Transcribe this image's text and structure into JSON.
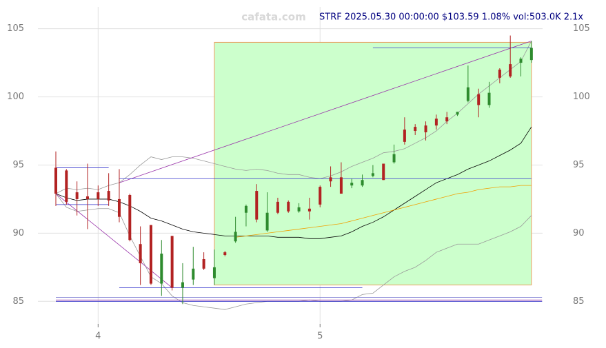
{
  "chart_data": {
    "type": "candlestick",
    "title": "STRF 2025.05.30 00:00:00 $103.59 1.08% vol:503.0K 2.1x",
    "watermark": "cafata.com",
    "categories": [
      null,
      null,
      null,
      null,
      "4",
      null,
      null,
      null,
      null,
      null,
      null,
      null,
      null,
      null,
      null,
      null,
      null,
      null,
      null,
      null,
      null,
      null,
      null,
      null,
      null,
      "5",
      null,
      null,
      null,
      null,
      null,
      null,
      null,
      null,
      null,
      null,
      null,
      null,
      null,
      null,
      null,
      null,
      null,
      null,
      null,
      null
    ],
    "open": [
      94.8,
      94.6,
      93.0,
      92.7,
      93.0,
      93.1,
      92.5,
      92.8,
      89.2,
      90.6,
      86.3,
      89.8,
      86.0,
      86.6,
      88.1,
      86.7,
      88.6,
      89.4,
      91.5,
      93.1,
      90.2,
      92.3,
      92.3,
      91.6,
      91.8,
      93.4,
      94.1,
      94.1,
      93.5,
      93.5,
      94.2,
      95.1,
      95.2,
      97.6,
      97.8,
      97.9,
      98.4,
      98.5,
      98.7,
      99.7,
      100.2,
      99.4,
      102.0,
      102.4,
      102.5,
      102.7
    ],
    "high": [
      96.0,
      94.7,
      93.8,
      95.1,
      93.5,
      94.4,
      94.7,
      92.9,
      90.5,
      90.6,
      89.5,
      89.8,
      87.8,
      89.0,
      88.6,
      88.8,
      88.7,
      91.2,
      92.1,
      93.6,
      93.0,
      92.6,
      92.4,
      92.2,
      92.6,
      93.5,
      94.9,
      95.2,
      94.0,
      94.3,
      95.0,
      95.1,
      96.5,
      98.5,
      98.0,
      98.2,
      98.7,
      98.9,
      98.9,
      102.3,
      100.6,
      101.1,
      102.1,
      104.5,
      102.9,
      104.1
    ],
    "low": [
      92.0,
      92.1,
      91.3,
      90.3,
      92.0,
      92.0,
      90.8,
      89.4,
      86.2,
      86.2,
      85.4,
      85.8,
      84.8,
      86.2,
      87.3,
      86.2,
      88.3,
      89.3,
      90.5,
      90.8,
      90.1,
      91.4,
      91.5,
      91.5,
      91.0,
      91.9,
      93.4,
      92.9,
      93.3,
      93.4,
      94.1,
      93.9,
      95.1,
      96.5,
      97.2,
      96.8,
      97.6,
      98.0,
      98.6,
      99.6,
      98.5,
      99.2,
      101.0,
      101.4,
      101.5,
      102.5
    ],
    "close": [
      92.9,
      92.3,
      92.5,
      92.5,
      92.5,
      92.4,
      91.2,
      89.5,
      87.8,
      86.3,
      88.5,
      86.0,
      86.4,
      87.4,
      87.4,
      87.5,
      88.4,
      90.1,
      92.0,
      91.0,
      91.5,
      91.5,
      91.6,
      91.9,
      91.6,
      92.1,
      93.8,
      92.9,
      93.7,
      93.9,
      94.4,
      93.9,
      95.8,
      96.7,
      97.5,
      97.4,
      97.9,
      98.2,
      98.9,
      100.7,
      99.4,
      100.3,
      101.4,
      101.5,
      102.8,
      103.59
    ],
    "up_color": "#2e8b2e",
    "down_color": "#b22222",
    "lines": [
      {
        "color": "#000000",
        "values": [
          92.9,
          92.6,
          92.4,
          92.5,
          92.5,
          92.5,
          92.3,
          92.0,
          91.6,
          91.1,
          90.9,
          90.6,
          90.3,
          90.1,
          90.0,
          89.9,
          89.8,
          89.8,
          89.8,
          89.8,
          89.8,
          89.7,
          89.7,
          89.7,
          89.6,
          89.6,
          89.7,
          89.8,
          90.1,
          90.5,
          90.8,
          91.2,
          91.7,
          92.2,
          92.7,
          93.2,
          93.7,
          94.0,
          94.3,
          94.7,
          95.0,
          95.3,
          95.7,
          96.1,
          96.6,
          97.8
        ]
      },
      {
        "color": "#f0a000",
        "values": [
          null,
          null,
          null,
          null,
          null,
          null,
          null,
          null,
          null,
          null,
          null,
          null,
          null,
          null,
          null,
          null,
          null,
          89.7,
          89.8,
          89.9,
          90.0,
          90.1,
          90.2,
          90.3,
          90.4,
          90.5,
          90.6,
          90.7,
          90.9,
          91.1,
          91.3,
          91.5,
          91.7,
          91.9,
          92.1,
          92.3,
          92.5,
          92.7,
          92.9,
          93.0,
          93.2,
          93.3,
          93.4,
          93.4,
          93.5,
          93.5
        ]
      },
      {
        "color": "#999999",
        "values": [
          92.9,
          93.3,
          93.2,
          93.3,
          93.2,
          93.5,
          93.7,
          94.3,
          95.0,
          95.6,
          95.4,
          95.6,
          95.6,
          95.5,
          95.3,
          95.1,
          94.9,
          94.7,
          94.6,
          94.7,
          94.6,
          94.4,
          94.3,
          94.3,
          94.1,
          94.0,
          94.2,
          94.5,
          94.9,
          95.2,
          95.5,
          95.9,
          96.0,
          96.2,
          96.6,
          97.0,
          97.5,
          98.2,
          98.8,
          99.5,
          100.2,
          100.8,
          101.4,
          102.0,
          102.6,
          104.1
        ]
      },
      {
        "color": "#999999",
        "values": [
          92.9,
          91.9,
          91.6,
          91.7,
          91.8,
          91.8,
          91.5,
          89.8,
          88.3,
          86.8,
          86.3,
          85.4,
          84.9,
          84.7,
          84.6,
          84.5,
          84.4,
          84.6,
          84.8,
          84.9,
          85.0,
          85.0,
          85.0,
          85.0,
          85.1,
          85.0,
          85.0,
          85.0,
          85.1,
          85.5,
          85.6,
          86.2,
          86.8,
          87.2,
          87.5,
          88.0,
          88.6,
          88.9,
          89.2,
          89.2,
          89.2,
          89.5,
          89.8,
          90.1,
          90.5,
          91.3
        ]
      }
    ],
    "box": {
      "x": [
        15,
        45
      ],
      "y": [
        86.2,
        104.0
      ],
      "fill": "#ccffcc",
      "stroke": "#e8a060"
    },
    "segments": [
      {
        "color": "#9933aa",
        "x": [
          0,
          11
        ],
        "y": [
          92.9,
          86.0
        ]
      },
      {
        "color": "#9933aa",
        "x": [
          6,
          45
        ],
        "y": [
          93.7,
          104.1
        ]
      },
      {
        "color": "#3333cc",
        "x": [
          6,
          45
        ],
        "y": [
          94.0,
          94.0
        ]
      },
      {
        "color": "#3333cc",
        "x": [
          30,
          45
        ],
        "y": [
          103.6,
          103.6
        ]
      },
      {
        "color": "#3333cc",
        "x": [
          6,
          29
        ],
        "y": [
          86.0,
          86.0
        ]
      },
      {
        "color": "#3333cc",
        "x": [
          0,
          5
        ],
        "y": [
          94.8,
          94.8
        ]
      },
      {
        "color": "#3333cc",
        "x": [
          0,
          5
        ],
        "y": [
          92.1,
          92.1
        ]
      },
      {
        "color": "#6666cc",
        "x": [
          0,
          46
        ],
        "y": [
          85.3,
          85.3
        ]
      },
      {
        "color": "#9933aa",
        "x": [
          0,
          46
        ],
        "y": [
          85.1,
          85.1
        ]
      },
      {
        "color": "#3333cc",
        "x": [
          0,
          46
        ],
        "y": [
          85.0,
          85.0
        ]
      }
    ],
    "ylim": [
      83.6,
      106.6
    ],
    "yticks": [
      85,
      90,
      95,
      100,
      105
    ],
    "grid": true
  }
}
